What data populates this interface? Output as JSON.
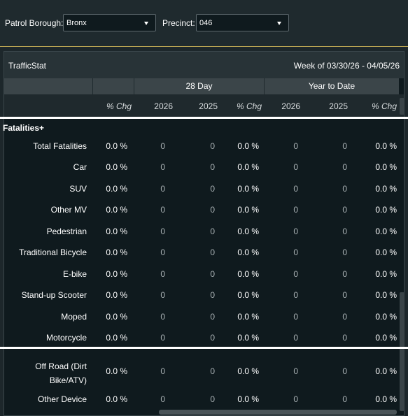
{
  "filters": {
    "borough_label": "Patrol Borough:",
    "borough_value": "Bronx",
    "precinct_label": "Precinct:",
    "precinct_value": "046"
  },
  "panel": {
    "title": "TrafficStat",
    "week": "Week of 03/30/26 - 04/05/26"
  },
  "group_headers": {
    "day28": "28 Day",
    "ytd": "Year to Date"
  },
  "columns": [
    "% Chg",
    "2026",
    "2025",
    "% Chg",
    "2026",
    "2025",
    "% Chg"
  ],
  "section": {
    "title": "Fatalities+"
  },
  "rows": [
    {
      "label": "Total Fatalities",
      "values": [
        "0.0 %",
        "0",
        "0",
        "0.0 %",
        "0",
        "0",
        "0.0 %"
      ]
    },
    {
      "label": "Car",
      "values": [
        "0.0 %",
        "0",
        "0",
        "0.0 %",
        "0",
        "0",
        "0.0 %"
      ]
    },
    {
      "label": "SUV",
      "values": [
        "0.0 %",
        "0",
        "0",
        "0.0 %",
        "0",
        "0",
        "0.0 %"
      ]
    },
    {
      "label": "Other MV",
      "values": [
        "0.0 %",
        "0",
        "0",
        "0.0 %",
        "0",
        "0",
        "0.0 %"
      ]
    },
    {
      "label": "Pedestrian",
      "values": [
        "0.0 %",
        "0",
        "0",
        "0.0 %",
        "0",
        "0",
        "0.0 %"
      ]
    },
    {
      "label": "Traditional Bicycle",
      "values": [
        "0.0 %",
        "0",
        "0",
        "0.0 %",
        "0",
        "0",
        "0.0 %"
      ]
    },
    {
      "label": "E-bike",
      "values": [
        "0.0 %",
        "0",
        "0",
        "0.0 %",
        "0",
        "0",
        "0.0 %"
      ]
    },
    {
      "label": "Stand-up Scooter",
      "values": [
        "0.0 %",
        "0",
        "0",
        "0.0 %",
        "0",
        "0",
        "0.0 %"
      ]
    },
    {
      "label": "Moped",
      "values": [
        "0.0 %",
        "0",
        "0",
        "0.0 %",
        "0",
        "0",
        "0.0 %"
      ]
    },
    {
      "label": "Motorcycle",
      "values": [
        "0.0 %",
        "0",
        "0",
        "0.0 %",
        "0",
        "0",
        "0.0 %"
      ]
    }
  ],
  "rows_after": [
    {
      "label_line1": "Off Road (Dirt",
      "label_line2": "Bike/ATV)",
      "values": [
        "0.0 %",
        "0",
        "0",
        "0.0 %",
        "0",
        "0",
        "0.0 %"
      ]
    },
    {
      "label_line1": "Other Device",
      "label_line2": "",
      "values": [
        "0.0 %",
        "0",
        "0",
        "0.0 %",
        "0",
        "0",
        "0.0 %"
      ]
    }
  ]
}
